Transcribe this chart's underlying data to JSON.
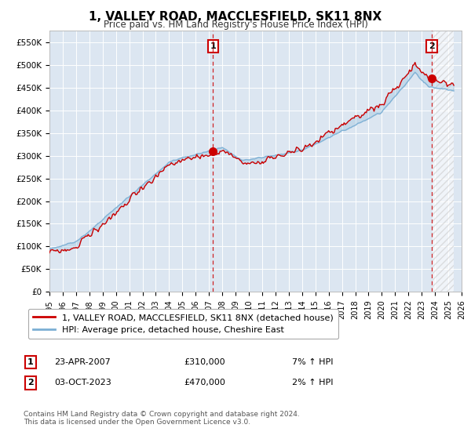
{
  "title": "1, VALLEY ROAD, MACCLESFIELD, SK11 8NX",
  "subtitle": "Price paid vs. HM Land Registry's House Price Index (HPI)",
  "ylim": [
    0,
    575000
  ],
  "xlim_start": 1995.0,
  "xlim_end": 2026.0,
  "plot_bg_color": "#dce6f1",
  "grid_color": "#ffffff",
  "hpi_line_color": "#7bafd4",
  "price_line_color": "#cc0000",
  "sale1_x": 2007.31,
  "sale1_y": 310000,
  "sale2_x": 2023.75,
  "sale2_y": 470000,
  "legend_label1": "1, VALLEY ROAD, MACCLESFIELD, SK11 8NX (detached house)",
  "legend_label2": "HPI: Average price, detached house, Cheshire East",
  "annotation1_num": "1",
  "annotation1_date": "23-APR-2007",
  "annotation1_price": "£310,000",
  "annotation1_hpi": "7% ↑ HPI",
  "annotation2_num": "2",
  "annotation2_date": "03-OCT-2023",
  "annotation2_price": "£470,000",
  "annotation2_hpi": "2% ↑ HPI",
  "footer": "Contains HM Land Registry data © Crown copyright and database right 2024.\nThis data is licensed under the Open Government Licence v3.0.",
  "yticks": [
    0,
    50000,
    100000,
    150000,
    200000,
    250000,
    300000,
    350000,
    400000,
    450000,
    500000,
    550000
  ],
  "ytick_labels": [
    "£0",
    "£50K",
    "£100K",
    "£150K",
    "£200K",
    "£250K",
    "£300K",
    "£350K",
    "£400K",
    "£450K",
    "£500K",
    "£550K"
  ],
  "xtick_years": [
    1995,
    1996,
    1997,
    1998,
    1999,
    2000,
    2001,
    2002,
    2003,
    2004,
    2005,
    2006,
    2007,
    2008,
    2009,
    2010,
    2011,
    2012,
    2013,
    2014,
    2015,
    2016,
    2017,
    2018,
    2019,
    2020,
    2021,
    2022,
    2023,
    2024,
    2025,
    2026
  ]
}
